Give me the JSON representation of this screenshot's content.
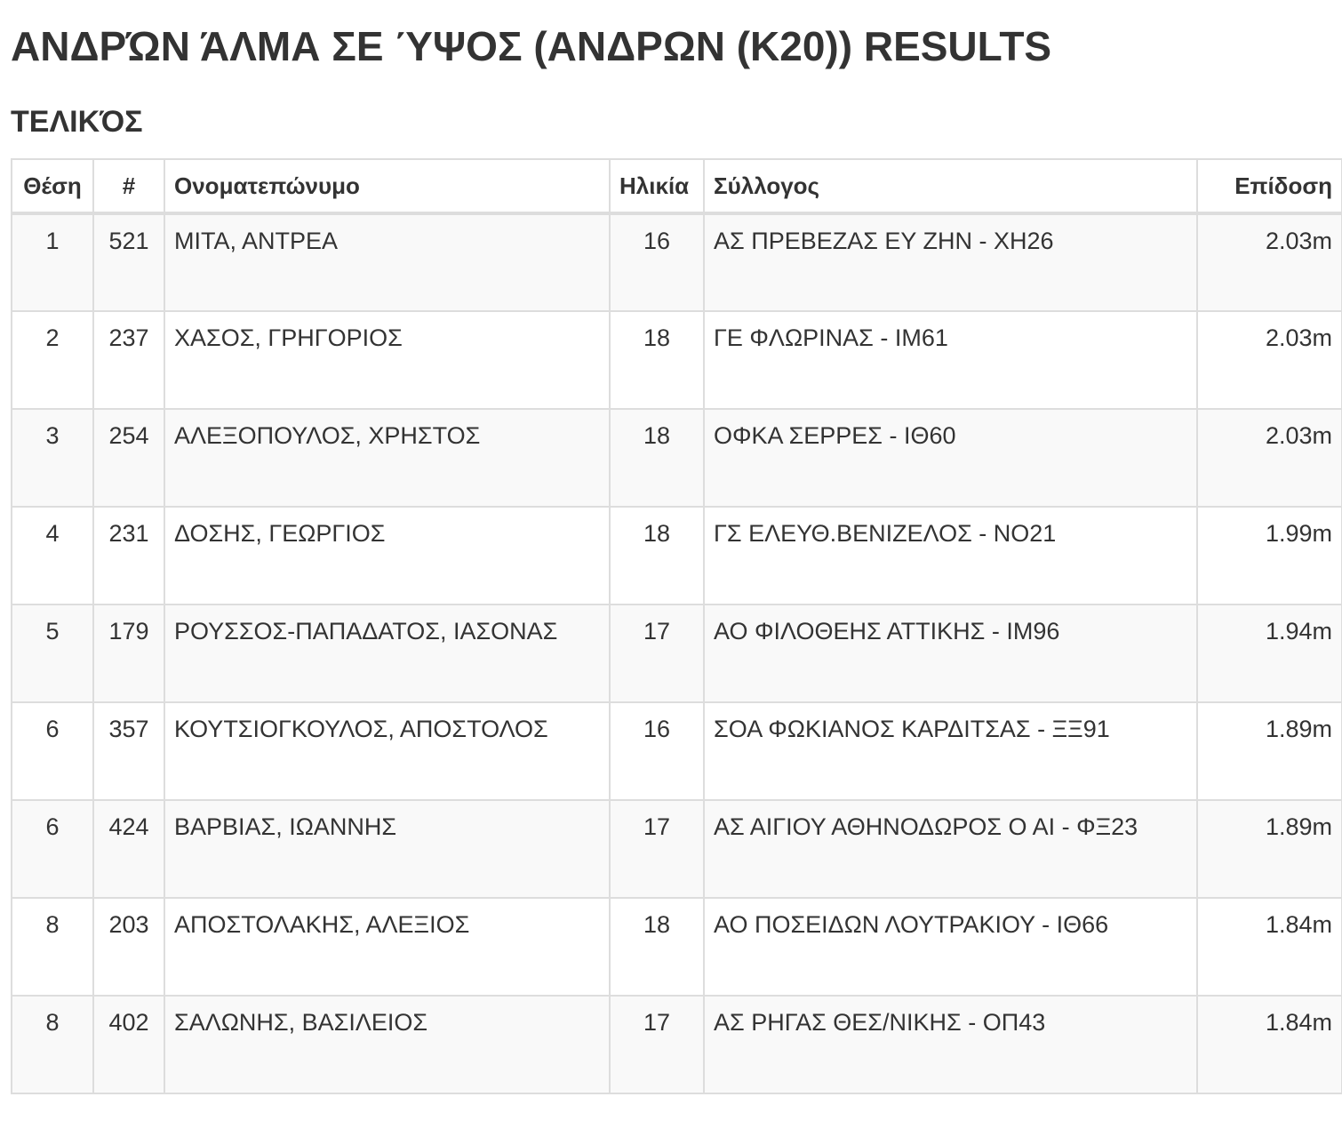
{
  "header": {
    "title": "ΑΝΔΡΏΝ ΆΛΜΑ ΣΕ ΎΨΟΣ (ΑΝΔΡΩΝ (Κ20)) RESULTS",
    "subtitle": "ΤΕΛΙΚΌΣ"
  },
  "table": {
    "columns": [
      "Θέση",
      "#",
      "Ονοματεπώνυμο",
      "Ηλικία",
      "Σύλλογος",
      "Επίδοση"
    ],
    "rows": [
      [
        "1",
        "521",
        "ΜΙΤΑ, ΑΝΤΡΕΑ",
        "16",
        "ΑΣ ΠΡΕΒΕΖΑΣ ΕΥ ΖΗΝ - ΧΗ26",
        "2.03m"
      ],
      [
        "2",
        "237",
        "ΧΑΣΟΣ, ΓΡΗΓΟΡΙΟΣ",
        "18",
        "ΓΕ ΦΛΩΡΙΝΑΣ - ΙΜ61",
        "2.03m"
      ],
      [
        "3",
        "254",
        "ΑΛΕΞΟΠΟΥΛΟΣ, ΧΡΗΣΤΟΣ",
        "18",
        "ΟΦΚΑ ΣΕΡΡΕΣ - ΙΘ60",
        "2.03m"
      ],
      [
        "4",
        "231",
        "ΔΟΣΗΣ, ΓΕΩΡΓΙΟΣ",
        "18",
        "ΓΣ ΕΛΕΥΘ.ΒΕΝΙΖΕΛΟΣ - ΝΟ21",
        "1.99m"
      ],
      [
        "5",
        "179",
        "ΡΟΥΣΣΟΣ-ΠΑΠΑΔΑΤΟΣ, ΙΑΣΟΝΑΣ",
        "17",
        "ΑΟ ΦΙΛΟΘΕΗΣ ΑΤΤΙΚΗΣ - ΙΜ96",
        "1.94m"
      ],
      [
        "6",
        "357",
        "ΚΟΥΤΣΙΟΓΚΟΥΛΟΣ, ΑΠΟΣΤΟΛΟΣ",
        "16",
        "ΣΟΑ ΦΩΚΙΑΝΟΣ ΚΑΡΔΙΤΣΑΣ - ΞΞ91",
        "1.89m"
      ],
      [
        "6",
        "424",
        "ΒΑΡΒΙΑΣ, ΙΩΑΝΝΗΣ",
        "17",
        "ΑΣ ΑΙΓΙΟΥ ΑΘΗΝΟΔΩΡΟΣ Ο ΑΙ - ΦΞ23",
        "1.89m"
      ],
      [
        "8",
        "203",
        "ΑΠΟΣΤΟΛΑΚΗΣ, ΑΛΕΞΙΟΣ",
        "18",
        "ΑΟ ΠΟΣΕΙΔΩΝ ΛΟΥΤΡΑΚΙΟΥ - ΙΘ66",
        "1.84m"
      ],
      [
        "8",
        "402",
        "ΣΑΛΩΝΗΣ, ΒΑΣΙΛΕΙΟΣ",
        "17",
        "ΑΣ ΡΗΓΑΣ ΘΕΣ/ΝΙΚΗΣ - ΟΠ43",
        "1.84m"
      ]
    ]
  }
}
